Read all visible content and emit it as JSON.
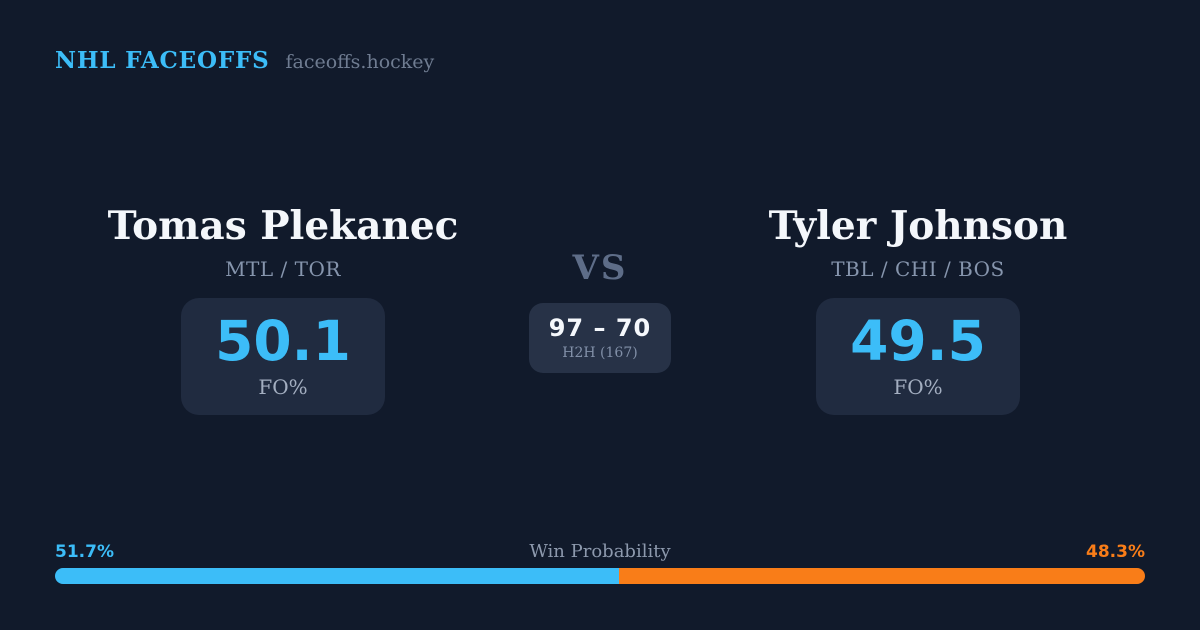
{
  "header": {
    "brand": "NHL FACEOFFS",
    "domain": "faceoffs.hockey"
  },
  "players": {
    "left": {
      "name": "Tomas Plekanec",
      "teams": "MTL / TOR",
      "fo_pct": "50.1",
      "fo_label": "FO%"
    },
    "right": {
      "name": "Tyler Johnson",
      "teams": "TBL / CHI / BOS",
      "fo_pct": "49.5",
      "fo_label": "FO%"
    }
  },
  "matchup": {
    "vs_label": "VS",
    "h2h_score": "97 – 70",
    "h2h_sub": "H2H (167)"
  },
  "win_probability": {
    "title": "Win Probability",
    "left_label": "51.7%",
    "right_label": "48.3%",
    "left_pct": 51.7,
    "right_pct": 48.3,
    "left_color": "#3cbdf8",
    "right_color": "#f97d18"
  },
  "colors": {
    "background": "#111a2b",
    "card": "#202b40",
    "h2h_card": "#273247",
    "accent_blue": "#3cbdf8",
    "accent_orange": "#f97d18"
  },
  "chart_data": {
    "type": "bar",
    "title": "Win Probability",
    "categories": [
      "Tomas Plekanec",
      "Tyler Johnson"
    ],
    "values": [
      51.7,
      48.3
    ],
    "xlabel": "",
    "ylabel": "Win Probability (%)",
    "ylim": [
      0,
      100
    ],
    "legend_position": "none",
    "notes": "single stacked horizontal probability bar; blue = left player, orange = right player"
  }
}
